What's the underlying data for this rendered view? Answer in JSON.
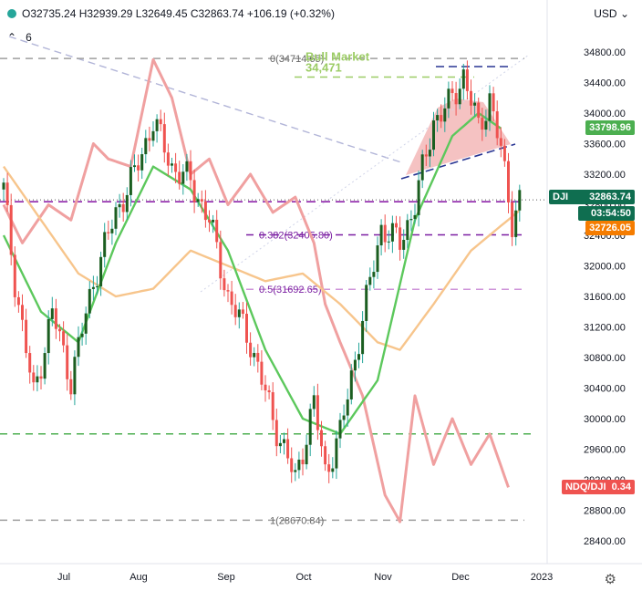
{
  "header": {
    "ohlc_text": "O32735.24 H32939.29 L32649.45 C32863.74 +106.19 (+0.32%)",
    "currency": "USD",
    "indicator_count": "6"
  },
  "tags": {
    "dji_label": "DJI",
    "dji_price": "32863.74",
    "countdown": "03:54:50",
    "sma_green": "33798.96",
    "sma_orange": "32726.05",
    "ratio_label": "NDQ/DJI",
    "ratio_value": "0.34"
  },
  "colors": {
    "up": "#26a69a",
    "down": "#ef5350",
    "sma_fast": "#5cc85c",
    "sma_slow": "#f7c58c",
    "ratio": "#f0a0a0",
    "fib": "#8e24aa",
    "green_level": "#4caf50"
  },
  "chart_data": {
    "type": "line",
    "title": "",
    "y_axis": {
      "ticks": [
        28400,
        28800,
        29200,
        29600,
        30000,
        30400,
        30800,
        31200,
        31600,
        32000,
        32400,
        32800,
        33200,
        33600,
        34000,
        34400,
        34800
      ]
    },
    "x_axis": {
      "labels": [
        "Jul",
        "Aug",
        "Sep",
        "Oct",
        "Nov",
        "Dec",
        "2023"
      ]
    },
    "price_close_series": {
      "name": "DJI",
      "anchors": [
        [
          0,
          33000
        ],
        [
          3,
          31800
        ],
        [
          8,
          30300
        ],
        [
          13,
          31400
        ],
        [
          18,
          30500
        ],
        [
          24,
          31800
        ],
        [
          30,
          32700
        ],
        [
          35,
          33200
        ],
        [
          40,
          33900
        ],
        [
          45,
          33300
        ],
        [
          50,
          33100
        ],
        [
          55,
          32600
        ],
        [
          60,
          31600
        ],
        [
          66,
          31000
        ],
        [
          72,
          30000
        ],
        [
          78,
          29200
        ],
        [
          83,
          30200
        ],
        [
          86,
          29300
        ],
        [
          90,
          29800
        ],
        [
          96,
          31300
        ],
        [
          101,
          32500
        ],
        [
          106,
          32300
        ],
        [
          110,
          32800
        ],
        [
          115,
          33900
        ],
        [
          119,
          34100
        ],
        [
          123,
          34500
        ],
        [
          127,
          33800
        ],
        [
          130,
          34200
        ],
        [
          133,
          33500
        ],
        [
          136,
          32600
        ],
        [
          138,
          32864
        ]
      ]
    },
    "sma_fast_series": {
      "name": "",
      "anchors": [
        [
          0,
          32400
        ],
        [
          10,
          31400
        ],
        [
          20,
          31000
        ],
        [
          30,
          32300
        ],
        [
          40,
          33300
        ],
        [
          50,
          33000
        ],
        [
          60,
          32200
        ],
        [
          70,
          30900
        ],
        [
          80,
          30000
        ],
        [
          90,
          29800
        ],
        [
          100,
          30500
        ],
        [
          110,
          32600
        ],
        [
          120,
          33700
        ],
        [
          127,
          34000
        ],
        [
          133,
          33800
        ]
      ]
    },
    "sma_slow_series": {
      "name": "",
      "anchors": [
        [
          0,
          33300
        ],
        [
          10,
          32600
        ],
        [
          20,
          31900
        ],
        [
          30,
          31600
        ],
        [
          40,
          31700
        ],
        [
          50,
          32200
        ],
        [
          60,
          32000
        ],
        [
          70,
          31800
        ],
        [
          80,
          31900
        ],
        [
          90,
          31500
        ],
        [
          100,
          31000
        ],
        [
          106,
          30900
        ],
        [
          115,
          31500
        ],
        [
          125,
          32200
        ],
        [
          138,
          32726
        ]
      ]
    },
    "ratio_series": {
      "name": "NDQ/DJI",
      "anchors": [
        [
          0,
          32800
        ],
        [
          5,
          32300
        ],
        [
          12,
          32800
        ],
        [
          18,
          32600
        ],
        [
          24,
          33600
        ],
        [
          28,
          33400
        ],
        [
          34,
          33300
        ],
        [
          40,
          34700
        ],
        [
          45,
          34200
        ],
        [
          50,
          33200
        ],
        [
          55,
          33400
        ],
        [
          60,
          32800
        ],
        [
          66,
          33200
        ],
        [
          72,
          32700
        ],
        [
          78,
          32900
        ],
        [
          83,
          32300
        ],
        [
          86,
          31500
        ],
        [
          90,
          31000
        ],
        [
          96,
          30300
        ],
        [
          102,
          29000
        ],
        [
          106,
          28650
        ],
        [
          110,
          30300
        ],
        [
          115,
          29400
        ],
        [
          120,
          30000
        ],
        [
          125,
          29400
        ],
        [
          130,
          29800
        ],
        [
          135,
          29100
        ]
      ]
    },
    "fib_levels": [
      {
        "label": "0(34714.65)",
        "value": 34714.65
      },
      {
        "label": "0.382(32405.80)",
        "value": 32405.8
      },
      {
        "label": "0.5(31692.65)",
        "value": 31692.65
      },
      {
        "label": "1(28670.84)",
        "value": 28670.84
      }
    ],
    "annotations": [
      {
        "text": "Bull Market",
        "value": 34471
      },
      {
        "text": "34,471",
        "value": 34471
      }
    ],
    "horizontal_levels": [
      {
        "value": 29800,
        "style": "green-dashed"
      },
      {
        "value": 32864,
        "style": "dotted-current"
      }
    ]
  }
}
